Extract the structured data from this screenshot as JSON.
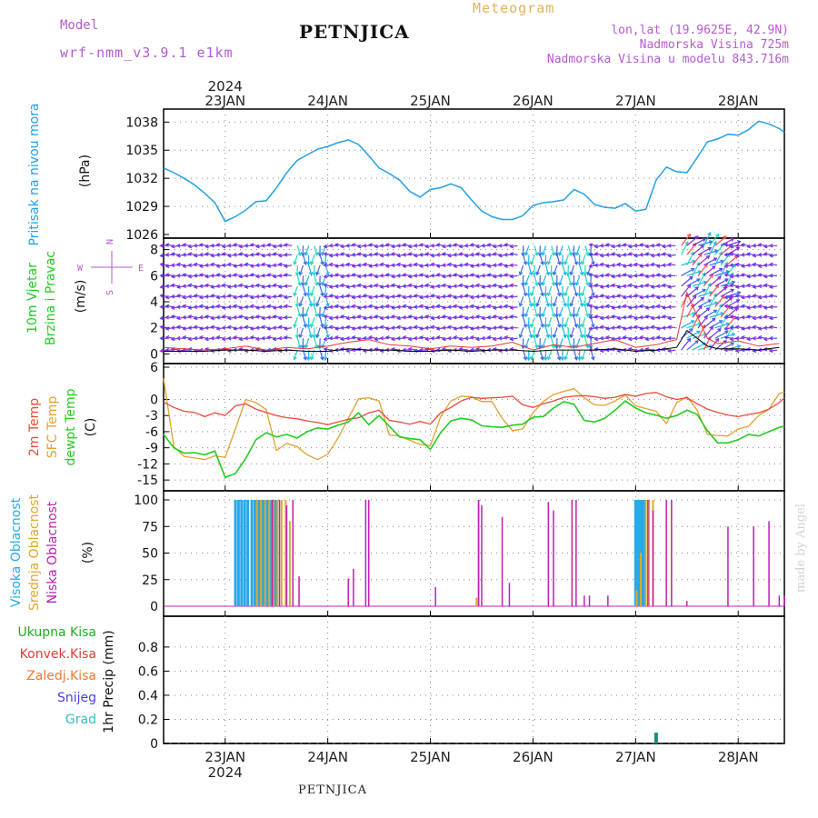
{
  "header": {
    "model_label": "Model",
    "model_name": "wrf-nmm_v3.9.1 e1km",
    "title": "PETNJICA",
    "meteogram_label": "Meteogram",
    "lonlat": "lon,lat (19.9625E, 42.9N)",
    "elevation": "Nadmorska Visina 725m",
    "model_elevation": "Nadmorska Visina u modelu 843.716m"
  },
  "footer": {
    "station": "PETNJICA",
    "watermark": "made by Angel"
  },
  "time_axis": {
    "year": "2024",
    "labels": [
      "23JAN",
      "24JAN",
      "25JAN",
      "26JAN",
      "27JAN",
      "28JAN"
    ],
    "tick_day_offsets": [
      0,
      1,
      2,
      3,
      4,
      5
    ],
    "range_days": [
      -0.6,
      5.45
    ]
  },
  "colors": {
    "pressure": "#22a0e6",
    "temp2m": "#e84a3a",
    "sfc": "#e3a030",
    "dewpt": "#22cc22",
    "cloud_high": "#2aa8e8",
    "cloud_mid": "#e0a82a",
    "cloud_low": "#c020b0",
    "precip_total": "#22aa22",
    "precip_conv": "#e83838",
    "precip_frozen": "#ef7a30",
    "snow": "#4a40e8",
    "hail": "#2ac0c0"
  },
  "chart_data": [
    {
      "type": "line",
      "panel": "pressure",
      "ylabel": "Pritisak na nivou mora",
      "unit": "(hPa)",
      "yticks": [
        1026,
        1029,
        1032,
        1035,
        1038
      ],
      "ylim": [
        1026,
        1039
      ],
      "x": [
        -0.6,
        -0.5,
        -0.4,
        -0.3,
        -0.2,
        -0.1,
        0,
        0.1,
        0.2,
        0.3,
        0.4,
        0.5,
        0.6,
        0.7,
        0.8,
        0.9,
        1,
        1.1,
        1.2,
        1.3,
        1.4,
        1.5,
        1.6,
        1.7,
        1.8,
        1.9,
        2,
        2.1,
        2.2,
        2.3,
        2.4,
        2.5,
        2.6,
        2.7,
        2.8,
        2.9,
        3,
        3.1,
        3.2,
        3.3,
        3.4,
        3.5,
        3.6,
        3.7,
        3.8,
        3.9,
        4,
        4.1,
        4.2,
        4.3,
        4.4,
        4.5,
        4.6,
        4.7,
        4.8,
        4.9,
        5,
        5.1,
        5.2,
        5.3,
        5.4,
        5.45
      ],
      "series": [
        {
          "values": [
            1033.1,
            1032.6,
            1032.0,
            1031.3,
            1030.4,
            1029.4,
            1027.4,
            1027.9,
            1028.6,
            1029.5,
            1029.6,
            1031.0,
            1032.6,
            1033.9,
            1034.5,
            1035.1,
            1035.4,
            1035.8,
            1036.1,
            1035.6,
            1034.4,
            1033.1,
            1032.5,
            1031.8,
            1030.6,
            1030.0,
            1030.8,
            1031.0,
            1031.4,
            1031.0,
            1029.7,
            1028.5,
            1027.9,
            1027.6,
            1027.6,
            1028.0,
            1029.1,
            1029.4,
            1029.5,
            1029.7,
            1030.8,
            1030.3,
            1029.2,
            1028.9,
            1028.8,
            1029.3,
            1028.5,
            1028.7,
            1031.8,
            1033.2,
            1032.7,
            1032.6,
            1034.2,
            1035.9,
            1036.2,
            1036.7,
            1036.6,
            1037.2,
            1038.1,
            1037.8,
            1037.3,
            1036.9
          ]
        }
      ]
    },
    {
      "type": "line",
      "panel": "wind",
      "title_lines": [
        "10m Vjetar",
        "Brzina i Pravac"
      ],
      "unit": "(m/s)",
      "compass": [
        "W",
        "N",
        "E",
        "S"
      ],
      "yticks": [
        0,
        2,
        4,
        6,
        8
      ],
      "ylim": [
        -0.6,
        8.6
      ],
      "x": [
        -0.6,
        -0.4,
        -0.2,
        0,
        0.2,
        0.4,
        0.6,
        0.8,
        1,
        1.2,
        1.4,
        1.6,
        1.8,
        2,
        2.2,
        2.4,
        2.6,
        2.8,
        3,
        3.2,
        3.4,
        3.6,
        3.8,
        4,
        4.2,
        4.4,
        4.5,
        4.6,
        4.7,
        4.8,
        5,
        5.2,
        5.4
      ],
      "series": [
        {
          "name": "gust",
          "values": [
            0.5,
            0.4,
            0.3,
            0.4,
            0.6,
            0.3,
            0.5,
            0.4,
            0.6,
            0.9,
            1.1,
            0.7,
            0.6,
            0.4,
            0.6,
            0.5,
            0.6,
            0.9,
            0.3,
            0.7,
            0.5,
            0.8,
            1.1,
            0.5,
            0.7,
            1.1,
            4.7,
            2.9,
            1.2,
            0.8,
            1.0,
            0.6,
            0.8
          ]
        },
        {
          "name": "speed",
          "values": [
            0.2,
            0.2,
            0.2,
            0.3,
            0.3,
            0.2,
            0.3,
            0.2,
            0.2,
            0.4,
            0.3,
            0.3,
            0.2,
            0.2,
            0.3,
            0.2,
            0.3,
            0.3,
            0.2,
            0.3,
            0.3,
            0.3,
            0.4,
            0.2,
            0.3,
            0.5,
            1.8,
            1.2,
            0.6,
            0.4,
            0.4,
            0.3,
            0.5
          ]
        }
      ]
    },
    {
      "type": "line",
      "panel": "temperature",
      "ylabels": [
        "2m Temp",
        "SFC Temp",
        "dewpt Temp"
      ],
      "unit": "(C)",
      "yticks": [
        6,
        0,
        -3,
        -6,
        -9,
        -12,
        -15
      ],
      "ylim": [
        -16.5,
        6
      ],
      "x": [
        -0.6,
        -0.5,
        -0.4,
        -0.3,
        -0.2,
        -0.1,
        0,
        0.1,
        0.2,
        0.3,
        0.4,
        0.5,
        0.6,
        0.7,
        0.8,
        0.9,
        1,
        1.1,
        1.2,
        1.3,
        1.4,
        1.5,
        1.6,
        1.7,
        1.8,
        1.9,
        2,
        2.1,
        2.2,
        2.3,
        2.4,
        2.5,
        2.6,
        2.7,
        2.8,
        2.9,
        3,
        3.1,
        3.2,
        3.3,
        3.4,
        3.5,
        3.6,
        3.7,
        3.8,
        3.9,
        4,
        4.1,
        4.2,
        4.3,
        4.4,
        4.5,
        4.6,
        4.7,
        4.8,
        4.9,
        5,
        5.1,
        5.2,
        5.3,
        5.4,
        5.45
      ],
      "series": [
        {
          "name": "2m Temp",
          "values": [
            -0.5,
            -1.5,
            -2.2,
            -2.4,
            -3.2,
            -2.5,
            -3.0,
            -1.2,
            -0.8,
            -1.8,
            -2.4,
            -3.0,
            -3.4,
            -3.6,
            -4.0,
            -4.3,
            -4.7,
            -4.2,
            -3.7,
            -3.4,
            -2.5,
            -2.0,
            -3.9,
            -4.2,
            -4.6,
            -4.1,
            -4.6,
            -2.5,
            -1.5,
            -0.3,
            0.4,
            0.2,
            0.3,
            0.4,
            0.6,
            -1.0,
            -1.5,
            -0.8,
            -0.3,
            0.4,
            0.6,
            0.7,
            0.5,
            0.2,
            0.4,
            0.9,
            0.6,
            1.1,
            1.3,
            0.5,
            0.0,
            0.3,
            -0.8,
            -1.8,
            -2.4,
            -2.9,
            -3.2,
            -2.8,
            -2.5,
            -1.8,
            -0.6,
            0.3
          ]
        },
        {
          "name": "SFC Temp",
          "values": [
            3.9,
            -8.8,
            -10.6,
            -10.9,
            -11.2,
            -10.5,
            -10.8,
            -5.5,
            0.0,
            -0.6,
            -1.9,
            -9.5,
            -8.2,
            -8.8,
            -10.3,
            -11.2,
            -10.2,
            -7.2,
            -3.5,
            0.1,
            0.3,
            -0.3,
            -6.6,
            -6.8,
            -7.6,
            -8.4,
            -8.6,
            -3.2,
            -0.3,
            0.6,
            0.5,
            -0.4,
            -0.4,
            -3.5,
            -5.8,
            -5.5,
            -2.5,
            -0.4,
            0.9,
            1.5,
            2.0,
            0.3,
            -1.0,
            -1.1,
            -0.3,
            0.8,
            -1.2,
            -1.7,
            -2.2,
            -4.5,
            -0.6,
            0.5,
            -2.0,
            -6.5,
            -6.7,
            -6.8,
            -5.5,
            -5.0,
            -3.0,
            -1.8,
            1.1,
            1.4
          ]
        },
        {
          "name": "dewpt Temp",
          "values": [
            -6.5,
            -9.0,
            -10.0,
            -9.9,
            -10.3,
            -9.6,
            -14.5,
            -13.8,
            -11.0,
            -7.5,
            -6.2,
            -7.0,
            -6.5,
            -7.2,
            -6.0,
            -5.3,
            -5.5,
            -4.8,
            -4.2,
            -2.5,
            -4.7,
            -3.0,
            -5.0,
            -7.0,
            -7.3,
            -7.5,
            -9.3,
            -6.2,
            -4.0,
            -3.5,
            -3.8,
            -4.9,
            -5.1,
            -5.2,
            -4.8,
            -4.6,
            -3.3,
            -3.2,
            -1.6,
            -0.4,
            -0.9,
            -3.9,
            -4.2,
            -3.5,
            -2.0,
            -0.3,
            -1.6,
            -2.5,
            -2.9,
            -3.5,
            -3.0,
            -2.0,
            -2.8,
            -5.8,
            -8.1,
            -8.1,
            -7.5,
            -6.5,
            -6.8,
            -6.0,
            -5.2,
            -5.0
          ]
        }
      ]
    },
    {
      "type": "bar",
      "panel": "clouds",
      "ylabels": [
        "Visoka Oblacnost",
        "Srednja Oblacnost",
        "Niska Oblacnost"
      ],
      "unit": "(%)",
      "yticks": [
        0,
        25,
        50,
        75,
        100
      ],
      "ylim": [
        0,
        100
      ],
      "series": [
        {
          "name": "Visoka Oblacnost",
          "x": [
            0.1,
            0.13,
            0.16,
            0.19,
            0.22,
            0.26,
            0.29,
            0.33,
            0.37,
            0.41,
            0.45,
            0.49,
            4.0,
            4.02,
            4.04,
            4.06,
            4.08
          ],
          "values": [
            100,
            100,
            100,
            100,
            100,
            100,
            100,
            100,
            100,
            100,
            100,
            100,
            100,
            100,
            100,
            100,
            100
          ]
        },
        {
          "name": "Srednja Oblacnost",
          "x": [
            0.31,
            0.35,
            0.39,
            0.43,
            0.47,
            0.51,
            0.55,
            0.59,
            0.63,
            2.45,
            2.47,
            4.01,
            4.05,
            4.1,
            4.13,
            4.17
          ],
          "values": [
            100,
            100,
            100,
            100,
            100,
            100,
            100,
            100,
            80,
            8,
            100,
            15,
            50,
            100,
            100,
            100
          ]
        },
        {
          "name": "Niska Oblacnost",
          "x": [
            0.46,
            0.53,
            0.6,
            0.66,
            0.72,
            1.2,
            1.25,
            1.37,
            1.4,
            2.05,
            2.47,
            2.5,
            2.7,
            2.77,
            3.15,
            3.2,
            3.38,
            3.42,
            3.5,
            3.55,
            3.73,
            4.12,
            4.17,
            4.3,
            4.35,
            4.5,
            4.9,
            5.15,
            5.3,
            5.4,
            5.45
          ],
          "values": [
            100,
            100,
            95,
            100,
            28,
            26,
            35,
            100,
            100,
            18,
            100,
            95,
            84,
            22,
            98,
            90,
            100,
            100,
            10,
            10,
            10,
            100,
            90,
            100,
            100,
            5,
            75,
            75,
            80,
            10,
            10
          ]
        }
      ]
    },
    {
      "type": "bar",
      "panel": "precipitation",
      "ylabel": "1hr Precip (mm)",
      "legend": [
        "Ukupna Kisa",
        "Konvek.Kisa",
        "Zaledj.Kisa",
        "Snijeg",
        "Grad"
      ],
      "yticks": [
        0,
        0.2,
        0.4,
        0.6,
        0.8
      ],
      "ylim": [
        0,
        0.98
      ],
      "series": [
        {
          "name": "Grad",
          "x": [
            4.2
          ],
          "values": [
            0.09
          ]
        }
      ]
    }
  ]
}
